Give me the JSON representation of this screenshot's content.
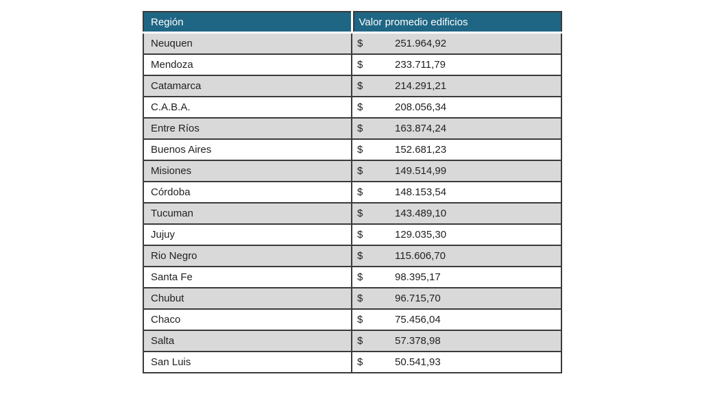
{
  "table": {
    "columns": [
      {
        "label": "Región"
      },
      {
        "label": "Valor promedio edificios"
      }
    ],
    "currency_symbol": "$",
    "rows": [
      {
        "region": "Neuquen",
        "value_display": "251.964,92"
      },
      {
        "region": "Mendoza",
        "value_display": "233.711,79"
      },
      {
        "region": "Catamarca",
        "value_display": "214.291,21"
      },
      {
        "region": "C.A.B.A.",
        "value_display": "208.056,34"
      },
      {
        "region": "Entre Ríos",
        "value_display": "163.874,24"
      },
      {
        "region": "Buenos Aires",
        "value_display": "152.681,23"
      },
      {
        "region": "Misiones",
        "value_display": "149.514,99"
      },
      {
        "region": "Córdoba",
        "value_display": "148.153,54"
      },
      {
        "region": "Tucuman",
        "value_display": "143.489,10"
      },
      {
        "region": "Jujuy",
        "value_display": "129.035,30"
      },
      {
        "region": "Rio Negro",
        "value_display": "115.606,70"
      },
      {
        "region": "Santa Fe",
        "value_display": "98.395,17"
      },
      {
        "region": "Chubut",
        "value_display": "96.715,70"
      },
      {
        "region": "Chaco",
        "value_display": "75.456,04"
      },
      {
        "region": "Salta",
        "value_display": "57.378,98"
      },
      {
        "region": "San Luis",
        "value_display": "50.541,93"
      }
    ]
  },
  "colors": {
    "header_bg": "#1e6684",
    "header_text": "#ffffff",
    "row_bg": "#ffffff",
    "row_alt_bg": "#d9d9d9",
    "border": "#3a3a3a"
  },
  "chart_data": {
    "type": "table",
    "title": "",
    "columns": [
      "Región",
      "Valor promedio edificios"
    ],
    "currency": "$",
    "rows": [
      [
        "Neuquen",
        251964.92
      ],
      [
        "Mendoza",
        233711.79
      ],
      [
        "Catamarca",
        214291.21
      ],
      [
        "C.A.B.A.",
        208056.34
      ],
      [
        "Entre Ríos",
        163874.24
      ],
      [
        "Buenos Aires",
        152681.23
      ],
      [
        "Misiones",
        149514.99
      ],
      [
        "Córdoba",
        148153.54
      ],
      [
        "Tucuman",
        143489.1
      ],
      [
        "Jujuy",
        129035.3
      ],
      [
        "Rio Negro",
        115606.7
      ],
      [
        "Santa Fe",
        98395.17
      ],
      [
        "Chubut",
        96715.7
      ],
      [
        "Chaco",
        75456.04
      ],
      [
        "Salta",
        57378.98
      ],
      [
        "San Luis",
        50541.93
      ]
    ]
  }
}
